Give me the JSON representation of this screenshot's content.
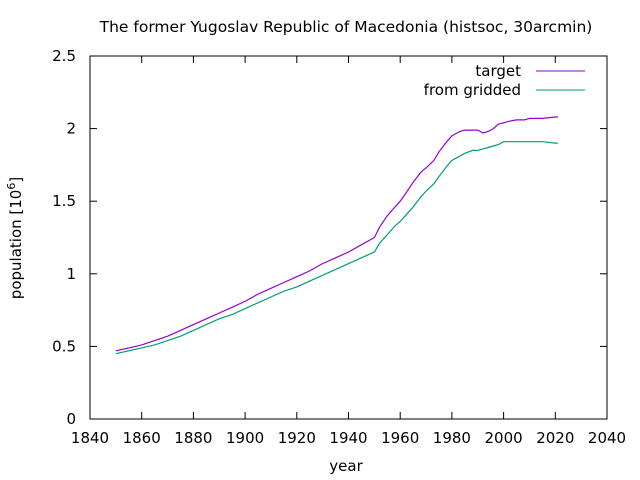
{
  "chart_data": {
    "type": "line",
    "title": "The former Yugoslav Republic of Macedonia (histsoc, 30arcmin)",
    "xlabel": "year",
    "ylabel": "population [10",
    "ylabel_sup": "6",
    "ylabel_close": "]",
    "xlim": [
      1840,
      2040
    ],
    "ylim": [
      0,
      2.5
    ],
    "xticks": [
      1840,
      1860,
      1880,
      1900,
      1920,
      1940,
      1960,
      1980,
      2000,
      2020,
      2040
    ],
    "yticks": [
      0,
      0.5,
      1,
      1.5,
      2,
      2.5
    ],
    "ytick_labels": [
      "0",
      "0.5",
      "1",
      "1.5",
      "2",
      "2.5"
    ],
    "grid": false,
    "legend_position": "top-right",
    "series": [
      {
        "name": "target",
        "color": "#9400d3",
        "x": [
          1850,
          1855,
          1860,
          1865,
          1870,
          1875,
          1880,
          1885,
          1890,
          1895,
          1900,
          1905,
          1910,
          1915,
          1920,
          1925,
          1930,
          1935,
          1940,
          1945,
          1950,
          1952,
          1955,
          1958,
          1960,
          1962,
          1965,
          1968,
          1970,
          1973,
          1975,
          1978,
          1980,
          1983,
          1985,
          1988,
          1990,
          1992,
          1994,
          1996,
          1998,
          2000,
          2002,
          2005,
          2008,
          2010,
          2015,
          2020,
          2021
        ],
        "y": [
          0.47,
          0.49,
          0.51,
          0.54,
          0.57,
          0.61,
          0.65,
          0.69,
          0.73,
          0.77,
          0.81,
          0.86,
          0.9,
          0.94,
          0.98,
          1.02,
          1.07,
          1.11,
          1.15,
          1.2,
          1.25,
          1.32,
          1.4,
          1.46,
          1.5,
          1.55,
          1.63,
          1.7,
          1.73,
          1.78,
          1.84,
          1.91,
          1.95,
          1.98,
          1.99,
          1.99,
          1.99,
          1.97,
          1.98,
          2.0,
          2.03,
          2.04,
          2.05,
          2.06,
          2.06,
          2.07,
          2.07,
          2.08,
          2.08
        ]
      },
      {
        "name": "from gridded",
        "color": "#009e73",
        "x": [
          1850,
          1855,
          1860,
          1865,
          1870,
          1875,
          1880,
          1885,
          1890,
          1895,
          1900,
          1905,
          1910,
          1915,
          1920,
          1925,
          1930,
          1935,
          1940,
          1945,
          1950,
          1952,
          1955,
          1958,
          1960,
          1962,
          1965,
          1968,
          1970,
          1973,
          1975,
          1978,
          1980,
          1983,
          1985,
          1988,
          1990,
          1992,
          1994,
          1996,
          1998,
          2000,
          2002,
          2005,
          2008,
          2010,
          2015,
          2020,
          2021
        ],
        "y": [
          0.45,
          0.47,
          0.49,
          0.51,
          0.54,
          0.57,
          0.61,
          0.65,
          0.69,
          0.72,
          0.76,
          0.8,
          0.84,
          0.88,
          0.91,
          0.95,
          0.99,
          1.03,
          1.07,
          1.11,
          1.15,
          1.21,
          1.27,
          1.33,
          1.36,
          1.4,
          1.46,
          1.53,
          1.57,
          1.62,
          1.67,
          1.74,
          1.78,
          1.81,
          1.83,
          1.85,
          1.85,
          1.86,
          1.87,
          1.88,
          1.89,
          1.91,
          1.91,
          1.91,
          1.91,
          1.91,
          1.91,
          1.9,
          1.9
        ]
      }
    ]
  }
}
